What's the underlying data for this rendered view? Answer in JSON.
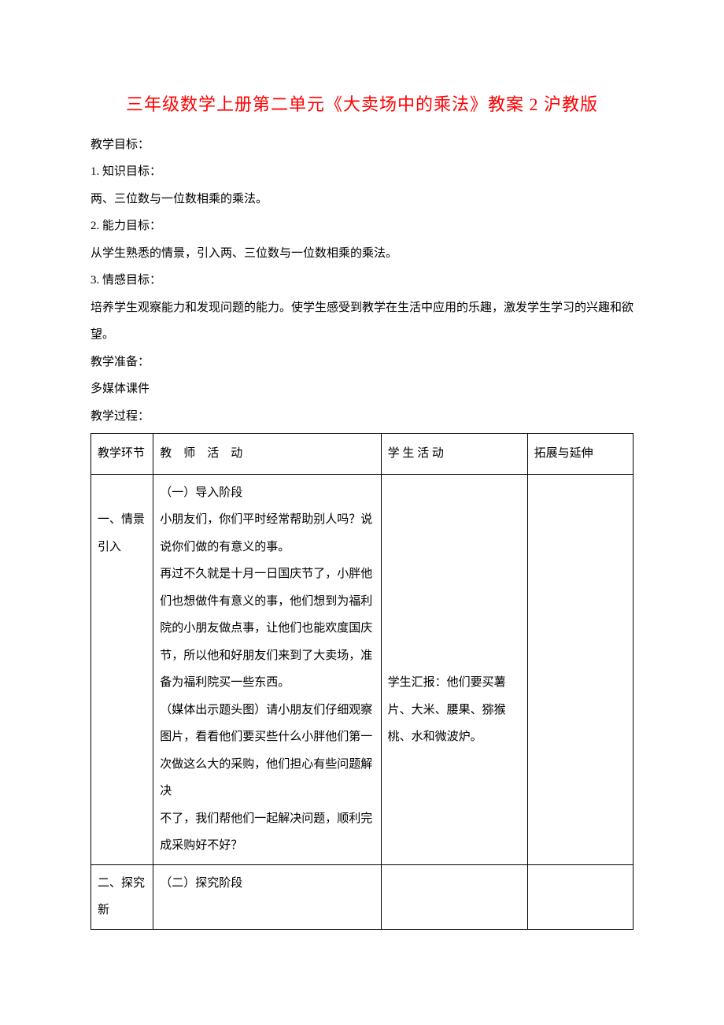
{
  "title": "三年级数学上册第二单元《大卖场中的乘法》教案 2 沪教版",
  "objectives": {
    "heading": "教学目标：",
    "item1_label": "1. 知识目标：",
    "item1_text": "两、三位数与一位数相乘的乘法。",
    "item2_label": "2. 能力目标：",
    "item2_text": "从学生熟悉的情景，引入两、三位数与一位数相乘的乘法。",
    "item3_label": "3. 情感目标：",
    "item3_text": "培养学生观察能力和发现问题的能力。使学生感受到教学在生活中应用的乐趣，激发学生学习的兴趣和欲望。"
  },
  "prep": {
    "heading": "教学准备：",
    "text": "多媒体课件"
  },
  "process_heading": "教学过程：",
  "table": {
    "headers": {
      "col1": "教学环节",
      "col2": "教　师　活　动",
      "col3": "学 生 活 动",
      "col4": "拓展与延伸"
    },
    "row1": {
      "col1": "一、情景引入",
      "col2": "（一）导入阶段\n小朋友们，你们平时经常帮助别人吗？说说你们做的有意义的事。\n再过不久就是十月一日国庆节了，小胖他们也想做件有意义的事，他们想到为福利院的小朋友做点事，让他们也能欢度国庆节，所以他和好朋友们来到了大卖场，准备为福利院买一些东西。\n（媒体出示题头图）请小朋友们仔细观察图片，看看他们要买些什么小胖他们第一次做这么大的采购，他们担心有些问题解决\n不了，我们帮他们一起解决问题，顺利完成采购好不好？",
      "col3": "学生汇报：他们要买薯片、大米、腰果、猕猴桃、水和微波炉。",
      "col4": ""
    },
    "row2": {
      "col1": "二、探究新",
      "col2": "（二）探究阶段",
      "col3": "",
      "col4": ""
    }
  },
  "colors": {
    "title_color": "#ff0000",
    "text_color": "#000000",
    "border_color": "#000000",
    "background": "#ffffff"
  },
  "typography": {
    "title_fontsize": 22,
    "body_fontsize": 15,
    "line_height": 2.3
  }
}
